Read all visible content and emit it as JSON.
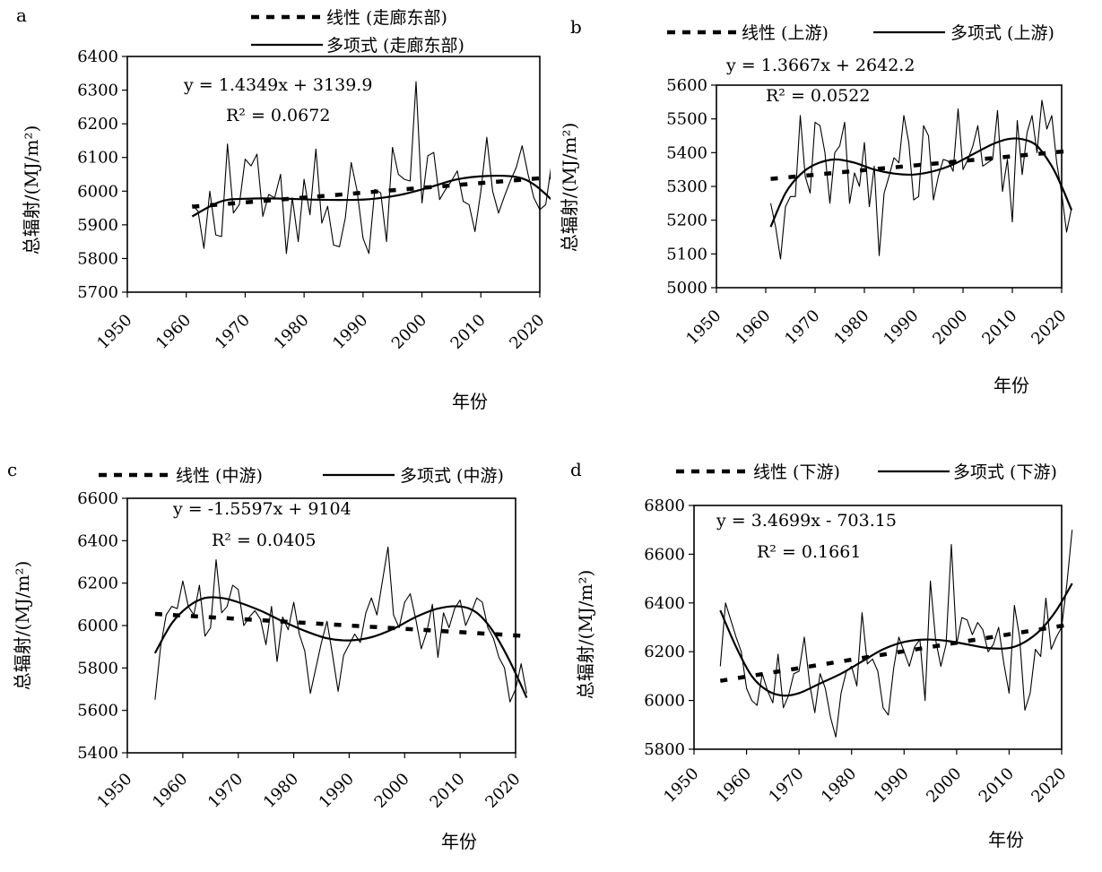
{
  "chart_data": [
    {
      "type": "line",
      "panel_label": "a",
      "legend": [
        "线性 (走廊东部)",
        "多项式 (走廊东部)"
      ],
      "equation": "y = 1.4349x + 3139.9",
      "r2": "R² = 0.0672",
      "ylabel": "总辐射/(MJ/m²)",
      "xlabel": "年份",
      "xlim": [
        1950,
        2020
      ],
      "ylim": [
        5700,
        6400
      ],
      "xticks": [
        1950,
        1960,
        1970,
        1980,
        1990,
        2000,
        2010,
        2020
      ],
      "yticks": [
        5700,
        5800,
        5900,
        6000,
        6100,
        6200,
        6300,
        6400
      ],
      "series": [
        {
          "name": "线性 (走廊东部)",
          "kind": "linear",
          "slope": 1.4349,
          "intercept": 3139.9,
          "x_range": [
            1961,
            2022
          ]
        },
        {
          "name": "多项式 (走廊东部)",
          "kind": "poly",
          "x": [
            1961,
            1966,
            1971,
            1976,
            1981,
            1986,
            1991,
            1996,
            2001,
            2006,
            2011,
            2016,
            2019,
            2022
          ],
          "values": [
            5925,
            5970,
            5978,
            5978,
            5975,
            5974,
            5976,
            5988,
            6010,
            6035,
            6045,
            6042,
            6020,
            5975
          ]
        },
        {
          "kind": "raw",
          "x": [
            1961,
            1962,
            1963,
            1964,
            1965,
            1966,
            1967,
            1968,
            1969,
            1970,
            1971,
            1972,
            1973,
            1974,
            1975,
            1976,
            1977,
            1978,
            1979,
            1980,
            1981,
            1982,
            1983,
            1984,
            1985,
            1986,
            1987,
            1988,
            1989,
            1990,
            1991,
            1992,
            1993,
            1994,
            1995,
            1996,
            1997,
            1998,
            1999,
            2000,
            2001,
            2002,
            2003,
            2004,
            2005,
            2006,
            2007,
            2008,
            2009,
            2010,
            2011,
            2012,
            2013,
            2014,
            2015,
            2016,
            2017,
            2018,
            2019,
            2020,
            2021,
            2022
          ],
          "values": [
            5960,
            5940,
            5830,
            6000,
            5870,
            5865,
            6140,
            5935,
            5960,
            6095,
            6075,
            6110,
            5925,
            5990,
            5980,
            6050,
            5815,
            5980,
            5850,
            6035,
            5930,
            6125,
            5905,
            5955,
            5840,
            5835,
            5920,
            6085,
            6000,
            5860,
            5815,
            6005,
            5995,
            5850,
            6130,
            6050,
            6035,
            6030,
            6325,
            5965,
            6105,
            6115,
            5975,
            6005,
            6030,
            6060,
            5970,
            5960,
            5880,
            6000,
            6160,
            6000,
            5935,
            5985,
            6030,
            6070,
            6135,
            6050,
            5980,
            5945,
            5960,
            6080
          ]
        }
      ]
    },
    {
      "type": "line",
      "panel_label": "b",
      "legend": [
        "线性 (上游)",
        "多项式 (上游)"
      ],
      "equation": "y = 1.3667x + 2642.2",
      "r2": "R² = 0.0522",
      "ylabel": "总辐射/(MJ/m²)",
      "xlabel": "年份",
      "xlim": [
        1950,
        2020
      ],
      "ylim": [
        5000,
        5600
      ],
      "xticks": [
        1950,
        1960,
        1970,
        1980,
        1990,
        2000,
        2010,
        2020
      ],
      "yticks": [
        5000,
        5100,
        5200,
        5300,
        5400,
        5500,
        5600
      ],
      "series": [
        {
          "name": "线性 (上游)",
          "kind": "linear",
          "slope": 1.3667,
          "intercept": 2642.2,
          "x_range": [
            1961,
            2022
          ]
        },
        {
          "name": "多项式 (上游)",
          "kind": "poly",
          "x": [
            1961,
            1964,
            1967,
            1970,
            1974,
            1978,
            1982,
            1986,
            1990,
            1994,
            1998,
            2002,
            2006,
            2009,
            2012,
            2015,
            2018,
            2020,
            2022
          ],
          "values": [
            5180,
            5280,
            5335,
            5365,
            5380,
            5370,
            5350,
            5338,
            5335,
            5345,
            5365,
            5395,
            5425,
            5440,
            5440,
            5420,
            5360,
            5300,
            5230
          ]
        },
        {
          "kind": "raw",
          "x": [
            1961,
            1962,
            1963,
            1964,
            1965,
            1966,
            1967,
            1968,
            1969,
            1970,
            1971,
            1972,
            1973,
            1974,
            1975,
            1976,
            1977,
            1978,
            1979,
            1980,
            1981,
            1982,
            1983,
            1984,
            1985,
            1986,
            1987,
            1988,
            1989,
            1990,
            1991,
            1992,
            1993,
            1994,
            1995,
            1996,
            1997,
            1998,
            1999,
            2000,
            2001,
            2002,
            2003,
            2004,
            2005,
            2006,
            2007,
            2008,
            2009,
            2010,
            2011,
            2012,
            2013,
            2014,
            2015,
            2016,
            2017,
            2018,
            2019,
            2020,
            2021,
            2022
          ],
          "values": [
            5250,
            5180,
            5085,
            5240,
            5270,
            5270,
            5510,
            5330,
            5280,
            5490,
            5480,
            5400,
            5250,
            5400,
            5420,
            5490,
            5250,
            5340,
            5300,
            5430,
            5240,
            5360,
            5095,
            5280,
            5330,
            5385,
            5370,
            5510,
            5430,
            5260,
            5270,
            5480,
            5450,
            5260,
            5330,
            5380,
            5375,
            5345,
            5530,
            5350,
            5380,
            5420,
            5480,
            5360,
            5370,
            5380,
            5525,
            5285,
            5380,
            5195,
            5495,
            5335,
            5460,
            5510,
            5400,
            5555,
            5470,
            5510,
            5370,
            5280,
            5165,
            5235
          ]
        }
      ]
    },
    {
      "type": "line",
      "panel_label": "c",
      "legend": [
        "线性 (中游)",
        "多项式 (中游)"
      ],
      "equation": "y = -1.5597x + 9104",
      "r2": "R² = 0.0405",
      "ylabel": "总辐射/(MJ/m²)",
      "xlabel": "年份",
      "xlim": [
        1950,
        2020
      ],
      "ylim": [
        5400,
        6600
      ],
      "xticks": [
        1950,
        1960,
        1970,
        1980,
        1990,
        2000,
        2010,
        2020
      ],
      "yticks": [
        5400,
        5600,
        5800,
        6000,
        6200,
        6400,
        6600
      ],
      "series": [
        {
          "name": "线性 (中游)",
          "kind": "linear",
          "slope": -1.5597,
          "intercept": 9104,
          "x_range": [
            1955,
            2022
          ]
        },
        {
          "name": "多项式 (中游)",
          "kind": "poly",
          "x": [
            1955,
            1958,
            1961,
            1964,
            1967,
            1970,
            1974,
            1978,
            1982,
            1986,
            1990,
            1994,
            1998,
            2002,
            2006,
            2010,
            2013,
            2016,
            2019,
            2022
          ],
          "values": [
            5870,
            6010,
            6090,
            6130,
            6130,
            6110,
            6070,
            6020,
            5975,
            5940,
            5930,
            5945,
            5985,
            6040,
            6080,
            6090,
            6060,
            5970,
            5830,
            5660
          ]
        },
        {
          "kind": "raw",
          "x": [
            1955,
            1956,
            1957,
            1958,
            1959,
            1960,
            1961,
            1962,
            1963,
            1964,
            1965,
            1966,
            1967,
            1968,
            1969,
            1970,
            1971,
            1972,
            1973,
            1974,
            1975,
            1976,
            1977,
            1978,
            1979,
            1980,
            1981,
            1982,
            1983,
            1984,
            1985,
            1986,
            1987,
            1988,
            1989,
            1990,
            1991,
            1992,
            1993,
            1994,
            1995,
            1996,
            1997,
            1998,
            1999,
            2000,
            2001,
            2002,
            2003,
            2004,
            2005,
            2006,
            2007,
            2008,
            2009,
            2010,
            2011,
            2012,
            2013,
            2014,
            2015,
            2016,
            2017,
            2018,
            2019,
            2020,
            2021,
            2022
          ],
          "values": [
            5650,
            5900,
            6050,
            6090,
            6080,
            6210,
            6090,
            6050,
            6190,
            5950,
            5990,
            6310,
            6060,
            6090,
            6190,
            6170,
            6000,
            6040,
            6070,
            6030,
            5910,
            6090,
            5830,
            6040,
            5980,
            6110,
            5960,
            5880,
            5680,
            5800,
            5920,
            6020,
            5860,
            5690,
            5860,
            5910,
            5960,
            5920,
            6060,
            6130,
            6050,
            6210,
            6370,
            6050,
            5990,
            6110,
            6150,
            6030,
            5890,
            5970,
            6100,
            5850,
            6060,
            5990,
            6080,
            6120,
            6000,
            6060,
            6130,
            6110,
            5990,
            5940,
            5850,
            5800,
            5640,
            5700,
            5820,
            5680
          ]
        }
      ]
    },
    {
      "type": "line",
      "panel_label": "d",
      "legend": [
        "线性 (下游)",
        "多项式 (下游)"
      ],
      "equation": "y = 3.4699x - 703.15",
      "r2": "R² = 0.1661",
      "ylabel": "总辐射/(MJ/m²)",
      "xlabel": "年份",
      "xlim": [
        1950,
        2020
      ],
      "ylim": [
        5800,
        6800
      ],
      "xticks": [
        1950,
        1960,
        1970,
        1980,
        1990,
        2000,
        2010,
        2020
      ],
      "yticks": [
        5800,
        6000,
        6200,
        6400,
        6600,
        6800
      ],
      "series": [
        {
          "name": "线性 (下游)",
          "kind": "linear",
          "slope": 3.4699,
          "intercept": -703.15,
          "x_range": [
            1955,
            2022
          ]
        },
        {
          "name": "多项式 (下游)",
          "kind": "poly",
          "x": [
            1955,
            1958,
            1961,
            1964,
            1967,
            1970,
            1974,
            1978,
            1982,
            1986,
            1990,
            1994,
            1998,
            2002,
            2006,
            2010,
            2013,
            2016,
            2019,
            2022
          ],
          "values": [
            6370,
            6220,
            6100,
            6040,
            6020,
            6030,
            6070,
            6110,
            6160,
            6210,
            6240,
            6250,
            6245,
            6230,
            6215,
            6215,
            6240,
            6290,
            6370,
            6480
          ]
        },
        {
          "kind": "raw",
          "x": [
            1955,
            1956,
            1957,
            1958,
            1959,
            1960,
            1961,
            1962,
            1963,
            1964,
            1965,
            1966,
            1967,
            1968,
            1969,
            1970,
            1971,
            1972,
            1973,
            1974,
            1975,
            1976,
            1977,
            1978,
            1979,
            1980,
            1981,
            1982,
            1983,
            1984,
            1985,
            1986,
            1987,
            1988,
            1989,
            1990,
            1991,
            1992,
            1993,
            1994,
            1995,
            1996,
            1997,
            1998,
            1999,
            2000,
            2001,
            2002,
            2003,
            2004,
            2005,
            2006,
            2007,
            2008,
            2009,
            2010,
            2011,
            2012,
            2013,
            2014,
            2015,
            2016,
            2017,
            2018,
            2019,
            2020,
            2021,
            2022
          ],
          "values": [
            6140,
            6400,
            6330,
            6260,
            6200,
            6050,
            6000,
            5980,
            6110,
            6040,
            5990,
            6190,
            5970,
            6020,
            6110,
            6120,
            6260,
            6070,
            5950,
            6110,
            6050,
            5930,
            5850,
            6030,
            6120,
            6140,
            6060,
            6360,
            6150,
            6170,
            6120,
            5970,
            5940,
            6130,
            6260,
            6200,
            6140,
            6220,
            6250,
            6000,
            6490,
            6250,
            6140,
            6230,
            6640,
            6230,
            6340,
            6330,
            6270,
            6320,
            6290,
            6200,
            6230,
            6300,
            6150,
            6030,
            6390,
            6260,
            5960,
            6030,
            6210,
            6180,
            6420,
            6210,
            6260,
            6300,
            6480,
            6700
          ]
        }
      ]
    }
  ]
}
